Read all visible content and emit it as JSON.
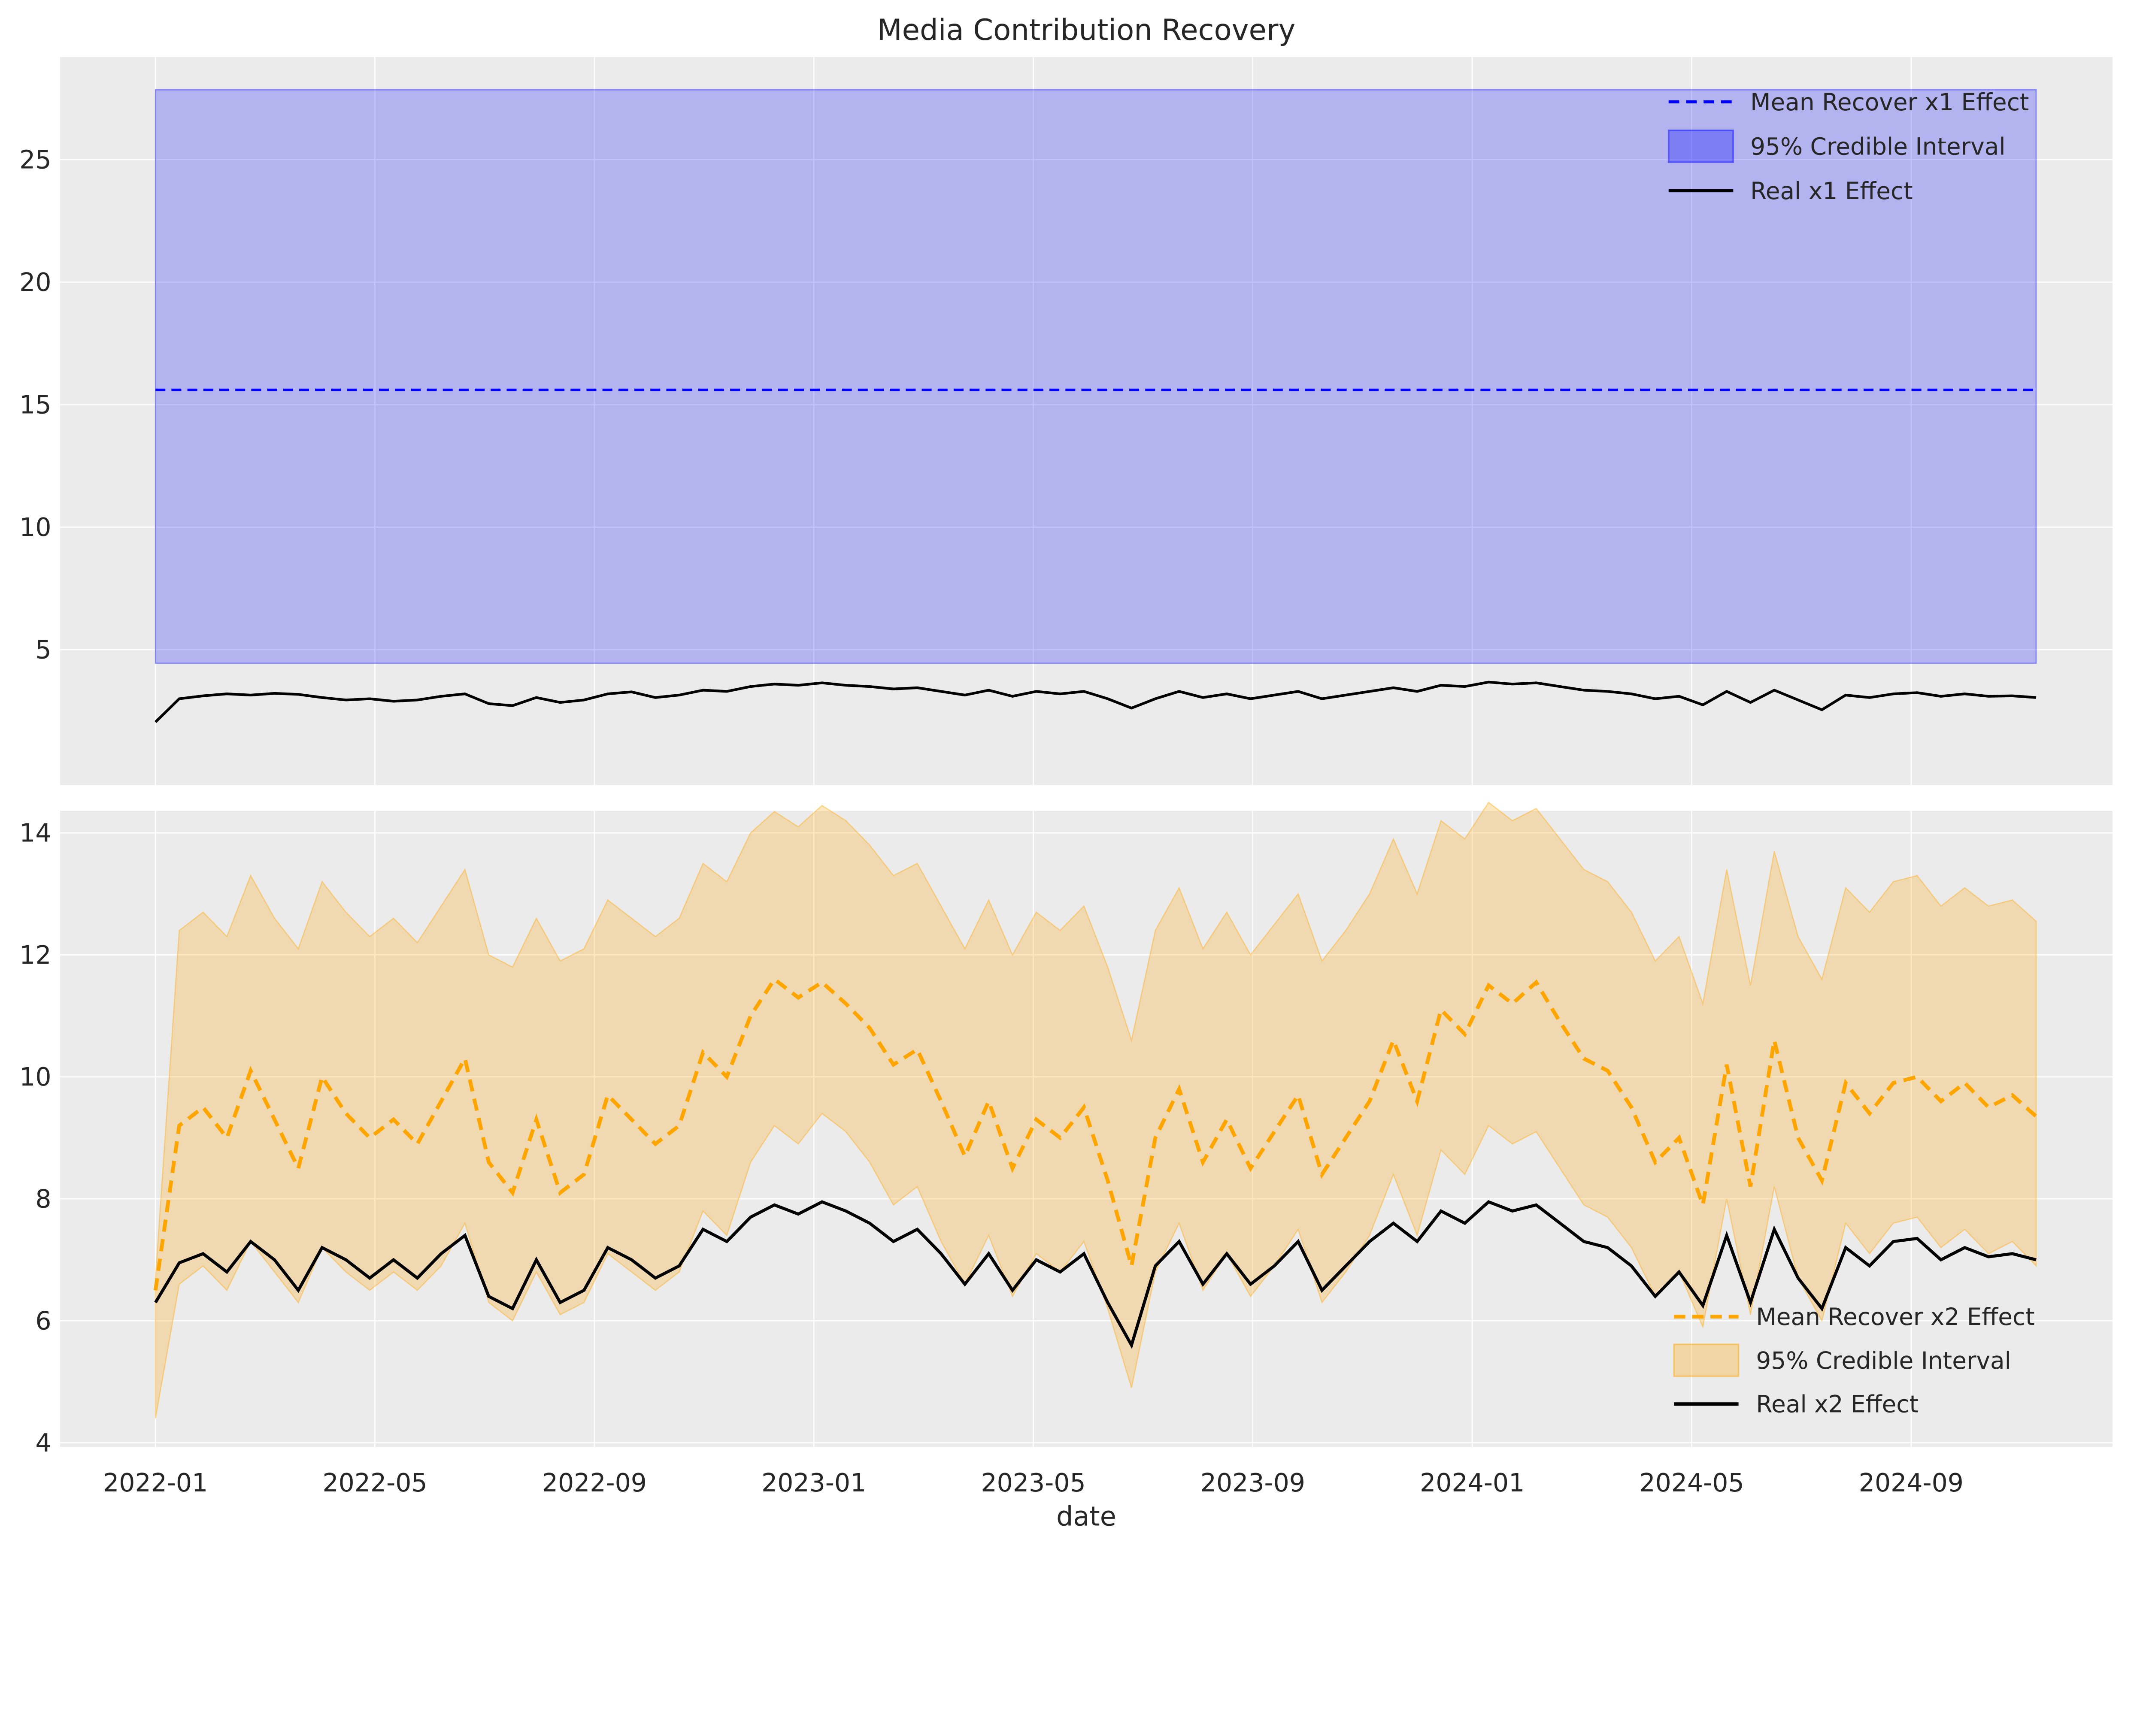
{
  "title": "Media Contribution Recovery",
  "xlabel": "date",
  "colors": {
    "figure_bg": "#ffffff",
    "plot_bg": "#ebebeb",
    "grid": "#ffffff",
    "text": "#262626",
    "x1_mean": "#0000ff",
    "x1_band_fill": "rgba(0,0,255,0.24)",
    "x1_band_edge": "rgba(0,0,255,0.40)",
    "x2_mean": "#ffa500",
    "x2_band_fill": "rgba(255,165,0,0.25)",
    "x2_band_edge": "rgba(255,165,0,0.40)",
    "real_line": "#000000"
  },
  "chart_data": [
    {
      "type": "line",
      "name": "x1-subplot",
      "legend": [
        "Mean Recover x1 Effect",
        "95% Credible Interval",
        "Real x1 Effect"
      ],
      "legend_position": "upper right",
      "grid": true,
      "yticks": [
        5,
        10,
        15,
        20,
        25
      ],
      "ylim": [
        -0.5,
        29.2
      ],
      "mean_value": 15.6,
      "ci_low": 4.45,
      "ci_high": 27.85,
      "real": [
        2.05,
        3.0,
        3.12,
        3.2,
        3.15,
        3.22,
        3.18,
        3.05,
        2.95,
        3.0,
        2.9,
        2.95,
        3.1,
        3.2,
        2.8,
        2.72,
        3.05,
        2.85,
        2.95,
        3.2,
        3.28,
        3.05,
        3.15,
        3.35,
        3.3,
        3.5,
        3.6,
        3.55,
        3.65,
        3.55,
        3.5,
        3.4,
        3.45,
        3.3,
        3.15,
        3.35,
        3.1,
        3.3,
        3.2,
        3.3,
        3.0,
        2.62,
        3.0,
        3.3,
        3.05,
        3.2,
        3.0,
        3.15,
        3.3,
        3.0,
        3.15,
        3.3,
        3.45,
        3.3,
        3.55,
        3.5,
        3.68,
        3.6,
        3.65,
        3.5,
        3.35,
        3.3,
        3.2,
        3.0,
        3.1,
        2.75,
        3.3,
        2.85,
        3.35,
        2.95,
        2.55,
        3.15,
        3.05,
        3.2,
        3.25,
        3.1,
        3.2,
        3.1,
        3.12,
        3.05
      ]
    },
    {
      "type": "line",
      "name": "x2-subplot",
      "legend": [
        "Mean Recover x2 Effect",
        "95% Credible Interval",
        "Real x2 Effect"
      ],
      "legend_position": "lower right",
      "grid": true,
      "yticks": [
        4,
        6,
        8,
        10,
        12,
        14
      ],
      "ylim": [
        3.93,
        14.36
      ],
      "mean": [
        6.5,
        9.2,
        9.5,
        9.0,
        10.1,
        9.3,
        8.5,
        10.0,
        9.4,
        9.0,
        9.3,
        8.9,
        9.6,
        10.3,
        8.6,
        8.1,
        9.3,
        8.1,
        8.4,
        9.7,
        9.3,
        8.9,
        9.2,
        10.4,
        10.0,
        11.0,
        11.6,
        11.3,
        11.55,
        11.2,
        10.8,
        10.2,
        10.45,
        9.6,
        8.7,
        9.6,
        8.5,
        9.3,
        9.0,
        9.5,
        8.3,
        6.9,
        9.0,
        9.8,
        8.6,
        9.3,
        8.5,
        9.1,
        9.7,
        8.4,
        9.0,
        9.6,
        10.6,
        9.6,
        11.1,
        10.7,
        11.5,
        11.2,
        11.55,
        10.9,
        10.3,
        10.1,
        9.5,
        8.6,
        9.0,
        7.9,
        10.2,
        8.2,
        10.6,
        9.0,
        8.3,
        9.9,
        9.4,
        9.9,
        10.0,
        9.6,
        9.9,
        9.5,
        9.7,
        9.35
      ],
      "ci_high": [
        6.7,
        12.4,
        12.7,
        12.3,
        13.3,
        12.6,
        12.1,
        13.2,
        12.7,
        12.3,
        12.6,
        12.2,
        12.8,
        13.4,
        12.0,
        11.8,
        12.6,
        11.9,
        12.1,
        12.9,
        12.6,
        12.3,
        12.6,
        13.5,
        13.2,
        14.0,
        14.35,
        14.1,
        14.45,
        14.2,
        13.8,
        13.3,
        13.5,
        12.8,
        12.1,
        12.9,
        12.0,
        12.7,
        12.4,
        12.8,
        11.8,
        10.6,
        12.4,
        13.1,
        12.1,
        12.7,
        12.0,
        12.5,
        13.0,
        11.9,
        12.4,
        13.0,
        13.9,
        13.0,
        14.2,
        13.9,
        14.5,
        14.2,
        14.4,
        13.9,
        13.4,
        13.2,
        12.7,
        11.9,
        12.3,
        11.2,
        13.4,
        11.5,
        13.7,
        12.3,
        11.6,
        13.1,
        12.7,
        13.2,
        13.3,
        12.8,
        13.1,
        12.8,
        12.9,
        12.55
      ],
      "ci_low": [
        4.4,
        6.6,
        6.9,
        6.5,
        7.3,
        6.8,
        6.3,
        7.2,
        6.8,
        6.5,
        6.8,
        6.5,
        6.9,
        7.6,
        6.3,
        6.0,
        6.8,
        6.1,
        6.3,
        7.1,
        6.8,
        6.5,
        6.8,
        7.8,
        7.4,
        8.6,
        9.2,
        8.9,
        9.4,
        9.1,
        8.6,
        7.9,
        8.2,
        7.3,
        6.6,
        7.4,
        6.4,
        7.1,
        6.8,
        7.3,
        6.2,
        4.9,
        6.8,
        7.6,
        6.5,
        7.1,
        6.4,
        6.9,
        7.5,
        6.3,
        6.8,
        7.4,
        8.4,
        7.4,
        8.8,
        8.4,
        9.2,
        8.9,
        9.1,
        8.5,
        7.9,
        7.7,
        7.2,
        6.4,
        6.8,
        5.9,
        8.0,
        6.1,
        8.2,
        6.7,
        6.0,
        7.6,
        7.1,
        7.6,
        7.7,
        7.2,
        7.5,
        7.1,
        7.3,
        6.9
      ],
      "real": [
        6.3,
        6.95,
        7.1,
        6.8,
        7.3,
        7.0,
        6.5,
        7.2,
        7.0,
        6.7,
        7.0,
        6.7,
        7.1,
        7.4,
        6.4,
        6.2,
        7.0,
        6.3,
        6.5,
        7.2,
        7.0,
        6.7,
        6.9,
        7.5,
        7.3,
        7.7,
        7.9,
        7.75,
        7.95,
        7.8,
        7.6,
        7.3,
        7.5,
        7.1,
        6.6,
        7.1,
        6.5,
        7.0,
        6.8,
        7.1,
        6.3,
        5.6,
        6.9,
        7.3,
        6.6,
        7.1,
        6.6,
        6.9,
        7.3,
        6.5,
        6.9,
        7.3,
        7.6,
        7.3,
        7.8,
        7.6,
        7.95,
        7.8,
        7.9,
        7.6,
        7.3,
        7.2,
        6.9,
        6.4,
        6.8,
        6.25,
        7.4,
        6.3,
        7.5,
        6.7,
        6.2,
        7.2,
        6.9,
        7.3,
        7.35,
        7.0,
        7.2,
        7.05,
        7.1,
        7.0
      ]
    }
  ],
  "x_axis": {
    "tick_labels": [
      "2022-01",
      "2022-05",
      "2022-09",
      "2023-01",
      "2023-05",
      "2023-09",
      "2024-01",
      "2024-05",
      "2024-09"
    ],
    "tick_month_offsets": [
      0,
      4,
      8,
      12,
      16,
      20,
      24,
      28,
      32
    ]
  }
}
